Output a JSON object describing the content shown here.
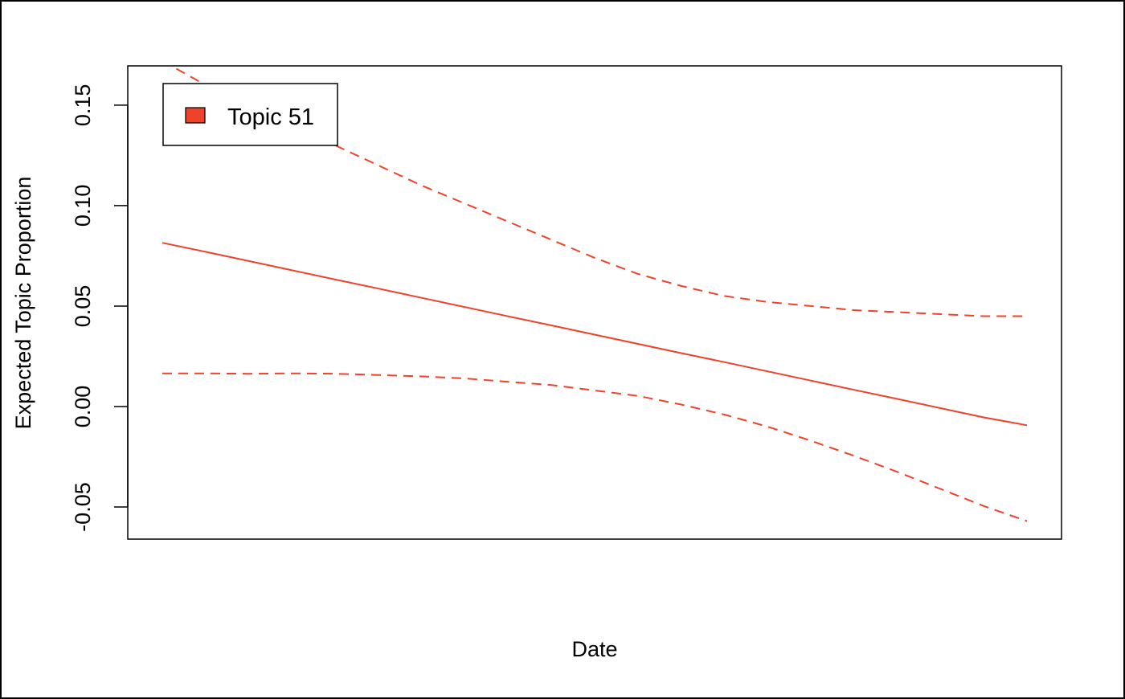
{
  "chart_data": {
    "type": "line",
    "title": "",
    "xlabel": "Date",
    "ylabel": "Expected Topic Proportion",
    "ylim": [
      -0.065,
      0.17
    ],
    "y_ticks": [
      -0.05,
      0.0,
      0.05,
      0.1,
      0.15
    ],
    "y_tick_labels": [
      "-0.05",
      "0.00",
      "0.05",
      "0.10",
      "0.15"
    ],
    "x_ticks_shown": false,
    "legend": {
      "position": "top-left",
      "entries": [
        {
          "label": "Topic 51",
          "color": "#ee4229"
        }
      ]
    },
    "grid": false,
    "x": [
      0,
      0.05,
      0.1,
      0.15,
      0.2,
      0.25,
      0.3,
      0.35,
      0.4,
      0.45,
      0.5,
      0.55,
      0.6,
      0.65,
      0.7,
      0.75,
      0.8,
      0.85,
      0.9,
      0.95,
      1.0
    ],
    "series": [
      {
        "name": "Topic 51",
        "role": "estimate",
        "line": "solid",
        "color": "#ee4229",
        "values": [
          0.0815,
          0.077,
          0.0724,
          0.0678,
          0.0632,
          0.0587,
          0.0541,
          0.0495,
          0.0449,
          0.0404,
          0.0358,
          0.0312,
          0.0266,
          0.0221,
          0.0175,
          0.0129,
          0.0083,
          0.0038,
          -0.0008,
          -0.0054,
          -0.0093
        ]
      },
      {
        "role": "upper",
        "line": "dashed",
        "color": "#ee4229",
        "values": [
          0.172,
          0.16,
          0.15,
          0.14,
          0.13,
          0.12,
          0.11,
          0.101,
          0.092,
          0.083,
          0.074,
          0.066,
          0.06,
          0.055,
          0.052,
          0.05,
          0.048,
          0.047,
          0.046,
          0.045,
          0.045
        ]
      },
      {
        "role": "lower",
        "line": "dashed",
        "color": "#ee4229",
        "values": [
          0.0165,
          0.0165,
          0.0163,
          0.0165,
          0.0163,
          0.0157,
          0.015,
          0.014,
          0.0123,
          0.0107,
          0.008,
          0.0053,
          0.001,
          -0.004,
          -0.01,
          -0.017,
          -0.0245,
          -0.0325,
          -0.041,
          -0.0495,
          -0.057
        ]
      }
    ]
  }
}
